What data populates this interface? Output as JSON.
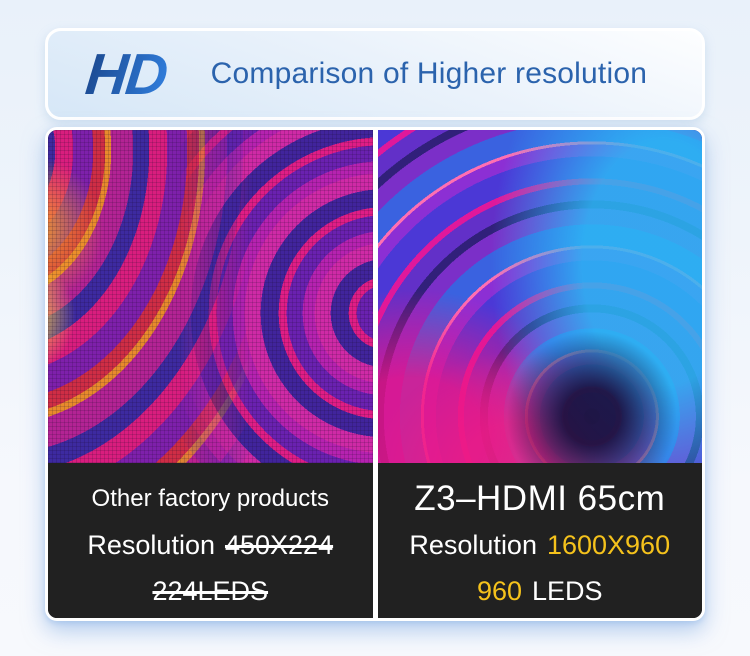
{
  "header": {
    "logo": "HD",
    "title": "Comparison of Higher resolution"
  },
  "left_panel": {
    "product": "Other factory products",
    "resolution_label": "Resolution",
    "resolution_value": "450X224",
    "leds": "224LEDS"
  },
  "right_panel": {
    "product": "Z3–HDMI 65cm",
    "resolution_label": "Resolution",
    "resolution_value": "1600X960",
    "leds_value": "960",
    "leds_label": "LEDS"
  },
  "colors": {
    "accent_blue": "#2b63ad",
    "highlight_yellow": "#f5c21c",
    "caption_bg": "#212121"
  }
}
